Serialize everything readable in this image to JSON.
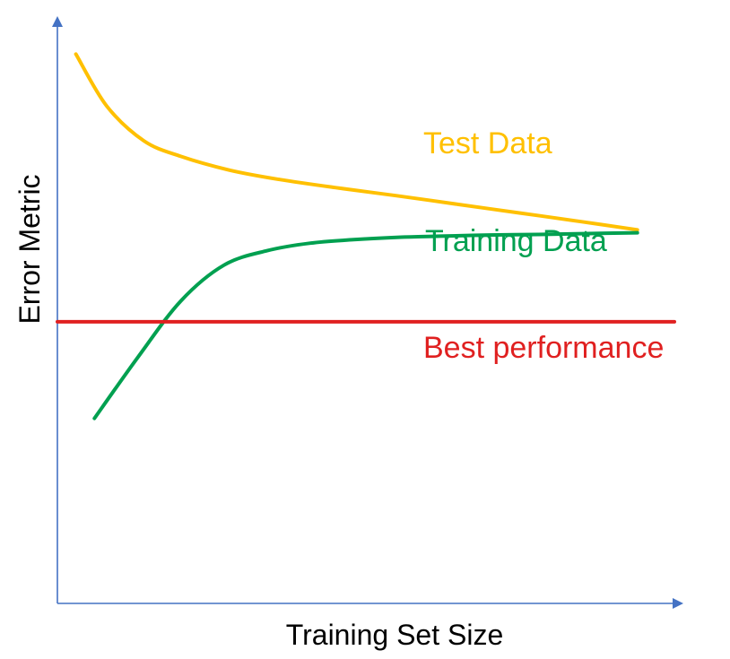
{
  "chart_data": {
    "type": "line",
    "title": "",
    "xlabel": "Training Set Size",
    "ylabel": "Error Metric",
    "grid": false,
    "legend": "none",
    "axis_color": "#4472c4",
    "xlim": [
      0,
      100
    ],
    "ylim": [
      0,
      100
    ],
    "series": [
      {
        "name": "Test Data",
        "color": "#ffc000",
        "x": [
          3,
          8,
          14,
          20,
          28,
          36,
          45,
          55,
          65,
          75,
          85,
          94
        ],
        "y": [
          95,
          86,
          80,
          77.3,
          74.9,
          73.3,
          71.9,
          70.5,
          69,
          67.5,
          66,
          64.6
        ]
      },
      {
        "name": "Training Data",
        "color": "#00a050",
        "x": [
          6,
          13,
          20,
          27,
          34,
          41,
          48,
          55,
          62,
          70,
          78,
          86,
          94
        ],
        "y": [
          32,
          42.5,
          52.3,
          58.5,
          61,
          62.3,
          62.9,
          63.3,
          63.5,
          63.7,
          63.8,
          63.95,
          64.1
        ]
      },
      {
        "name": "Best performance",
        "color": "#e02020",
        "x": [
          0,
          100
        ],
        "y": [
          48.7,
          48.7
        ]
      }
    ]
  }
}
